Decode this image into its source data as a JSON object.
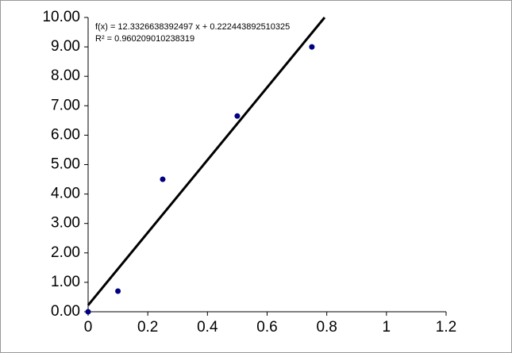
{
  "chart_data": {
    "type": "scatter",
    "x": [
      0,
      0.1,
      0.25,
      0.5,
      0.75
    ],
    "series": [
      {
        "color": "#000080",
        "values": [
          0,
          0.7,
          4.5,
          6.65,
          9.0
        ]
      }
    ],
    "xlim": [
      0,
      1.2
    ],
    "xticks": [
      0,
      0.2,
      0.4,
      0.6,
      0.8,
      1,
      1.2
    ],
    "ylim": [
      0,
      10
    ],
    "yticks": [
      {
        "value": 0,
        "label": "0.00"
      },
      {
        "value": 1,
        "label": "1.00"
      },
      {
        "value": 2,
        "label": "2.00"
      },
      {
        "value": 3,
        "label": "3.00"
      },
      {
        "value": 4,
        "label": "4.00"
      },
      {
        "value": 5,
        "label": "5.00"
      },
      {
        "value": 6,
        "label": "6.00"
      },
      {
        "value": 7,
        "label": "7.00"
      },
      {
        "value": 8,
        "label": "8.00"
      },
      {
        "value": 9,
        "label": "9.00"
      },
      {
        "value": 10,
        "label": "10.00"
      }
    ],
    "grid": false,
    "trendline": {
      "slope": 12.3326638392497,
      "intercept": 0.222443892510325,
      "color": "#000000",
      "equation": "f(x) = 12.3326638392497 x + 0.222443892510325",
      "r_squared": "R² = 0.960209010238319"
    }
  }
}
